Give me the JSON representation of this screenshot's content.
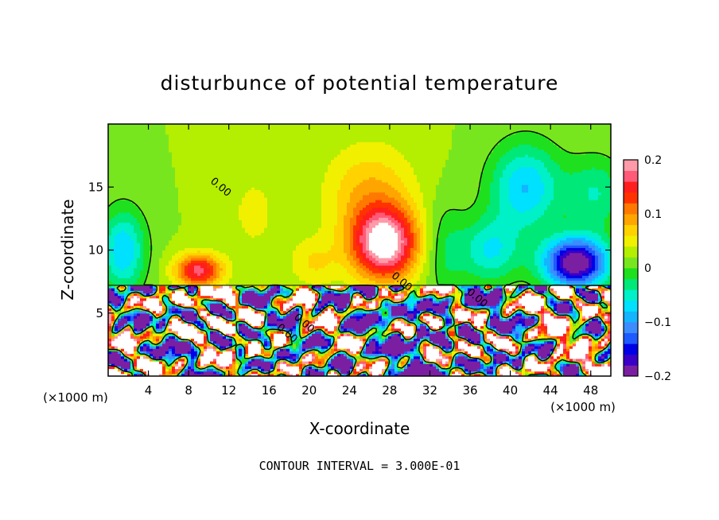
{
  "chart_data": {
    "type": "heatmap",
    "title": "disturbunce of potential temperature",
    "xlabel": "X-coordinate",
    "ylabel": "Z-coordinate",
    "x_unit_left": "(×1000 m)",
    "x_unit_right": "(×1000 m)",
    "xlim": [
      0,
      50
    ],
    "ylim": [
      0,
      20
    ],
    "x_ticks": [
      4,
      8,
      12,
      16,
      20,
      24,
      28,
      32,
      36,
      40,
      44,
      48
    ],
    "y_ticks": [
      5,
      10,
      15
    ],
    "colorbar": {
      "min": -0.2,
      "max": 0.2,
      "ticks": [
        {
          "value": 0.2,
          "label": "0.2"
        },
        {
          "value": 0.1,
          "label": "0.1"
        },
        {
          "value": 0,
          "label": "0"
        },
        {
          "value": -0.1,
          "label": "−0.1"
        },
        {
          "value": -0.2,
          "label": "−0.2"
        }
      ],
      "colors": [
        "#7b1fa2",
        "#3a00c8",
        "#0000e6",
        "#1e5aff",
        "#3c8cff",
        "#14b4ff",
        "#00e0ff",
        "#00f0c8",
        "#00e878",
        "#1ee01e",
        "#78e61e",
        "#b4ee00",
        "#f0f000",
        "#ffd200",
        "#ffa500",
        "#ff7800",
        "#ff3200",
        "#ff1e1e",
        "#ff5a78",
        "#ff9aa8"
      ]
    },
    "contour_labels": [
      {
        "x": 11.0,
        "z": 14.8,
        "text": "0.00"
      },
      {
        "x": 29.0,
        "z": 7.3,
        "text": "0.00"
      },
      {
        "x": 19.3,
        "z": 4.0,
        "text": "0.00"
      },
      {
        "x": 17.6,
        "z": 3.2,
        "text": "0.00"
      },
      {
        "x": 36.5,
        "z": 6.0,
        "text": "0.00"
      }
    ],
    "interface_height": 7.2,
    "footer": "CONTOUR INTERVAL = 3.000E-01"
  }
}
